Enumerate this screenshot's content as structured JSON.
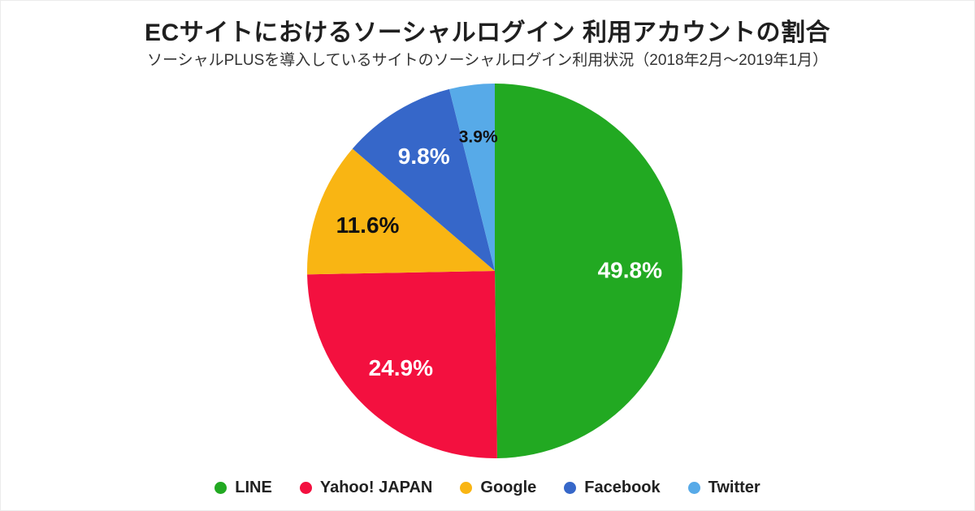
{
  "page": {
    "title": "ECサイトにおけるソーシャルログイン 利用アカウントの割合",
    "subtitle": "ソーシャルPLUSを導入しているサイトのソーシャルログイン利用状況（2018年2月～2019年1月）"
  },
  "chart_data": {
    "type": "pie",
    "title": "ECサイトにおけるソーシャルログイン 利用アカウントの割合",
    "subtitle": "ソーシャルPLUSを導入しているサイトのソーシャルログイン利用状況（2018年2月～2019年1月）",
    "start_angle_deg": 0,
    "direction": "clockwise",
    "legend_position": "bottom",
    "slices": [
      {
        "label": "LINE",
        "value": 49.8,
        "display": "49.8%",
        "color": "#22A922",
        "label_color": "#ffffff"
      },
      {
        "label": "Yahoo! JAPAN",
        "value": 24.9,
        "display": "24.9%",
        "color": "#F3103F",
        "label_color": "#ffffff"
      },
      {
        "label": "Google",
        "value": 11.6,
        "display": "11.6%",
        "color": "#F9B513",
        "label_color": "#111111"
      },
      {
        "label": "Facebook",
        "value": 9.8,
        "display": "9.8%",
        "color": "#3667C9",
        "label_color": "#ffffff"
      },
      {
        "label": "Twitter",
        "value": 3.9,
        "display": "3.9%",
        "color": "#57AAE8",
        "label_color": "#111111"
      }
    ]
  }
}
